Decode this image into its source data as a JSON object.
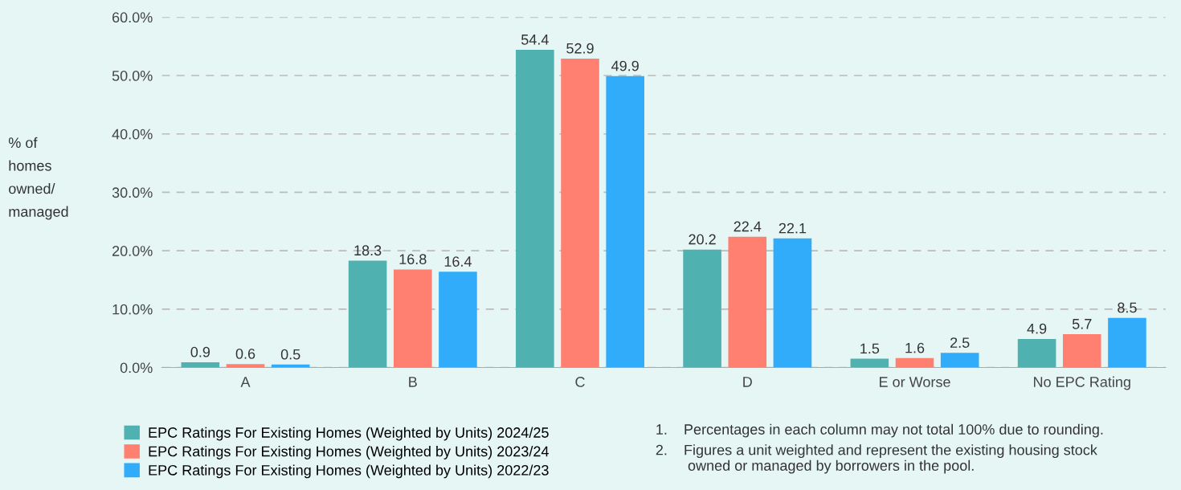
{
  "chart_data": {
    "type": "bar",
    "ylabel": "% of\nhomes\nowned/\nmanaged",
    "categories": [
      "A",
      "B",
      "C",
      "D",
      "E or Worse",
      "No EPC Rating"
    ],
    "series": [
      {
        "name": "EPC Ratings For Existing Homes (Weighted by Units) 2024/25",
        "color": "#4fb1b0",
        "values": [
          0.9,
          18.3,
          54.4,
          20.2,
          1.5,
          4.9
        ]
      },
      {
        "name": "EPC Ratings For Existing Homes (Weighted by Units) 2023/24",
        "color": "#ff8070",
        "values": [
          0.6,
          16.8,
          52.9,
          22.4,
          1.6,
          5.7
        ]
      },
      {
        "name": "EPC Ratings For Existing Homes (Weighted by Units) 2022/23",
        "color": "#30acfb",
        "values": [
          0.5,
          16.4,
          49.9,
          22.1,
          2.5,
          8.5
        ]
      }
    ],
    "ylim": [
      0,
      60
    ],
    "yticks": [
      {
        "value": 0,
        "label": "0.0%"
      },
      {
        "value": 10,
        "label": "10.0%"
      },
      {
        "value": 20,
        "label": "20.0%"
      },
      {
        "value": 30,
        "label": "30.0%"
      },
      {
        "value": 40,
        "label": "40.0%"
      },
      {
        "value": 50,
        "label": "50.0%"
      },
      {
        "value": 60,
        "label": "60.0%"
      }
    ],
    "grid": "y",
    "legend": "bottom left",
    "data_labels": true,
    "annotations": [
      "1.    Percentages in each column may not total 100% due to rounding.",
      "2.    Figures a unit weighted and represent the existing housing stock\n        owned or managed by borrowers in the pool."
    ]
  }
}
